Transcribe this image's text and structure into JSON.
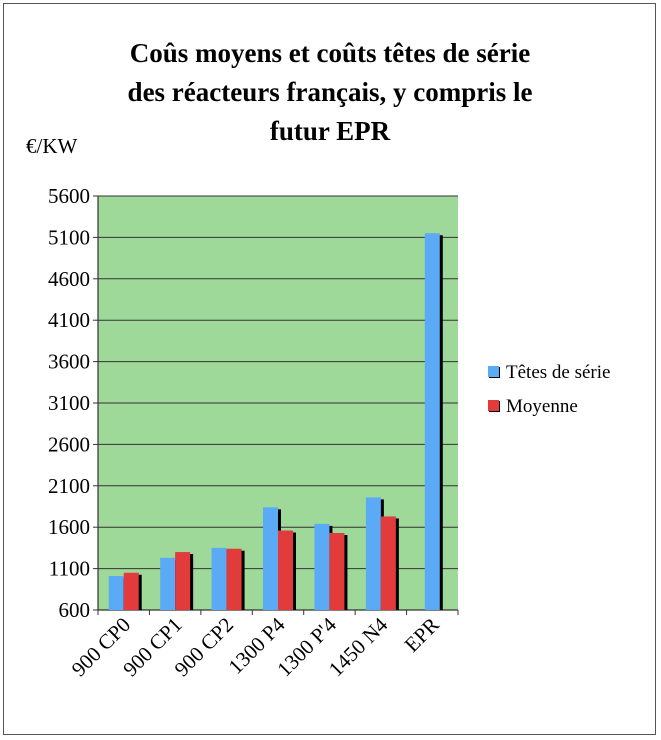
{
  "chart_data": {
    "type": "bar",
    "title_lines": [
      "Coûs moyens et coûts têtes de série",
      "des réacteurs français, y compris le",
      "futur EPR"
    ],
    "ylabel": "€/KW",
    "categories": [
      "900 CP0",
      "900 CP1",
      "900 CP2",
      "1300 P4",
      "1300 P'4",
      "1450 N4",
      "EPR"
    ],
    "series": [
      {
        "name": "Têtes de série",
        "color": "#5aaaf5",
        "values": [
          1010,
          1230,
          1350,
          1840,
          1640,
          1960,
          5150
        ]
      },
      {
        "name": "Moyenne",
        "color": "#e23b3b",
        "values": [
          1050,
          1300,
          1340,
          1560,
          1530,
          1730,
          null
        ]
      }
    ],
    "yticks": [
      600,
      1100,
      1600,
      2100,
      2600,
      3100,
      3600,
      4100,
      4600,
      5100,
      5600
    ],
    "ylim": [
      600,
      5600
    ],
    "grid": true,
    "plot_background": "#9ed99a",
    "legend_position": "right"
  }
}
